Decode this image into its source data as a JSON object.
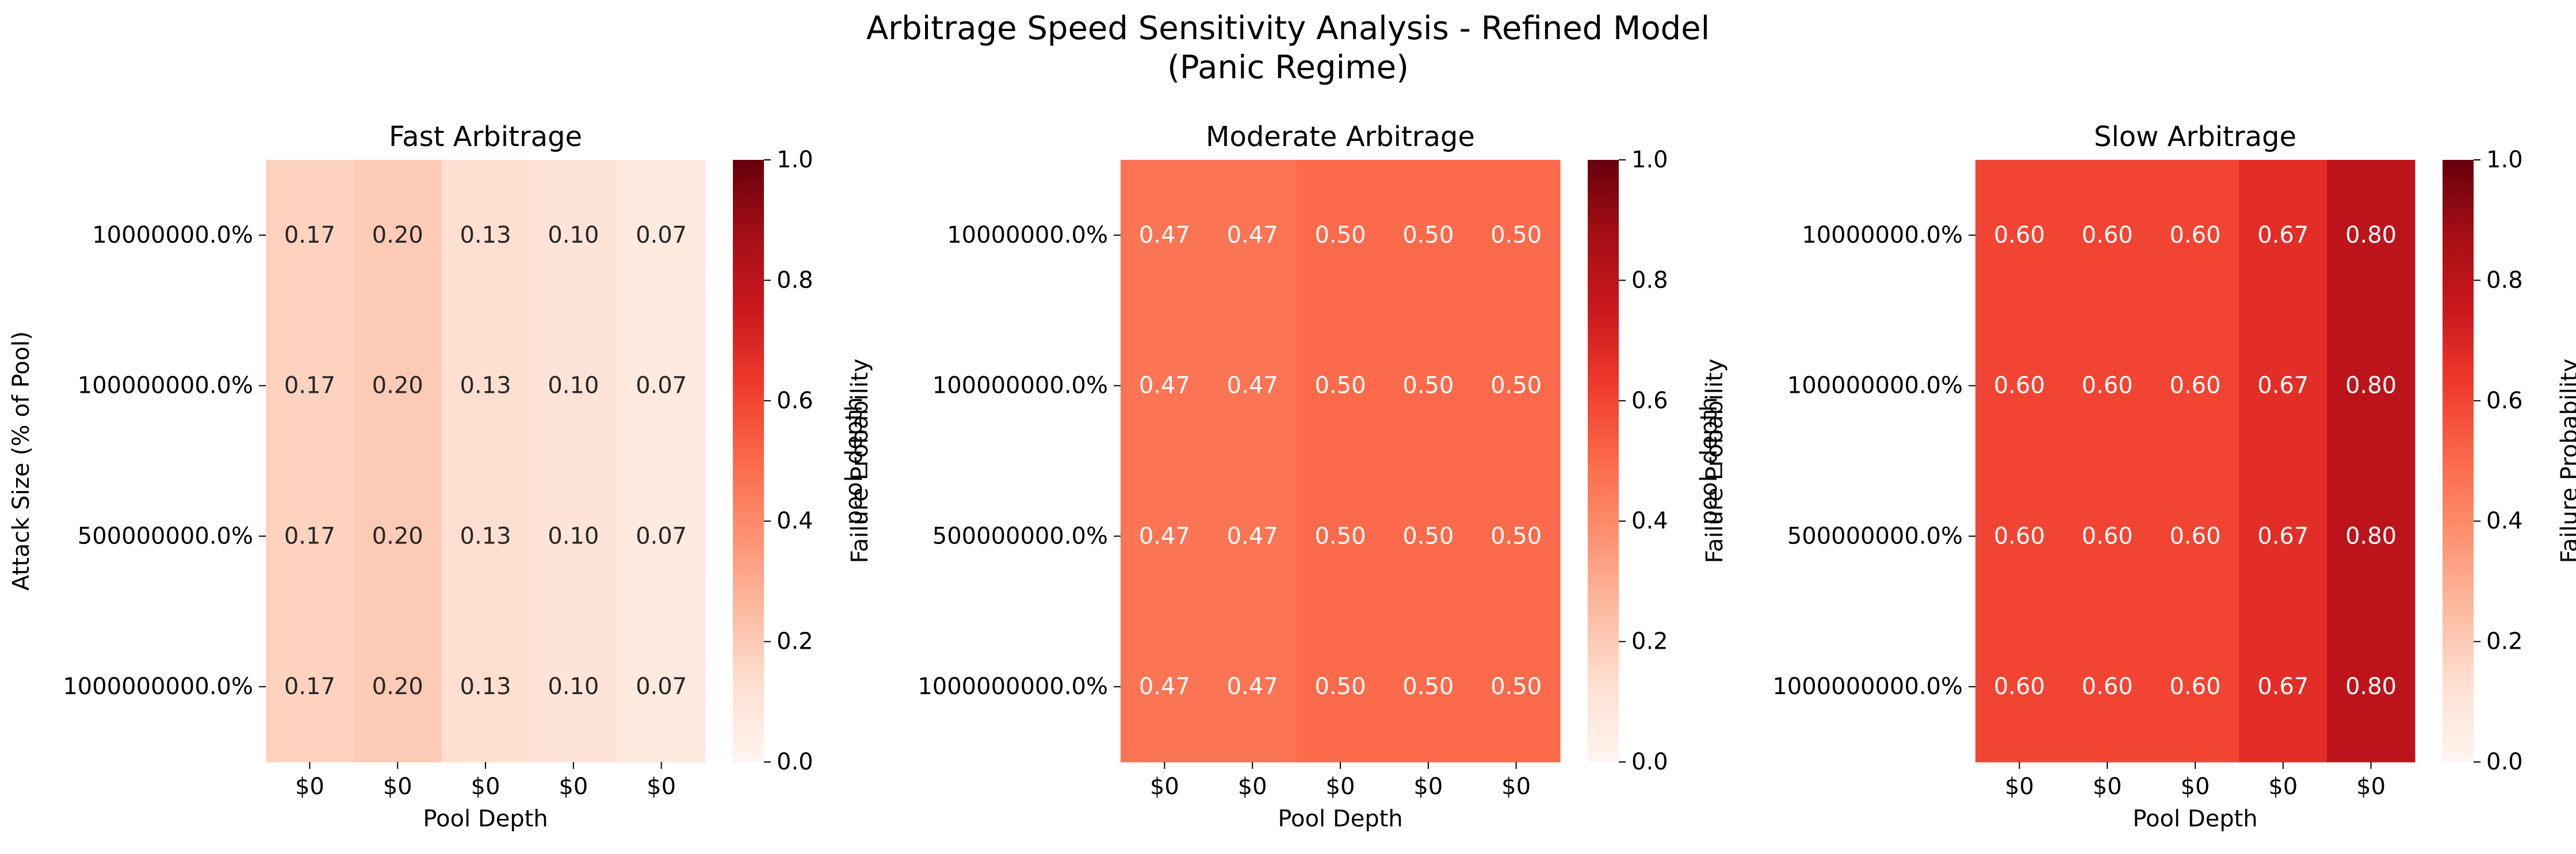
{
  "title": "Arbitrage Speed Sensitivity Analysis - Refined Model",
  "subtitle": "(Panic Regime)",
  "colors": {
    "cmap": "Reds",
    "light_text": "#ffffff",
    "dark_text": "#262626"
  },
  "chart_data": [
    {
      "type": "heatmap",
      "title": "Fast Arbitrage",
      "xlabel": "Pool Depth",
      "ylabel": "Attack Size (% of Pool)",
      "x_ticks": [
        "$0",
        "$0",
        "$0",
        "$0",
        "$0"
      ],
      "y_ticks": [
        "10000000.0%",
        "100000000.0%",
        "500000000.0%",
        "1000000000.0%"
      ],
      "values": [
        [
          0.17,
          0.2,
          0.13,
          0.1,
          0.07
        ],
        [
          0.17,
          0.2,
          0.13,
          0.1,
          0.07
        ],
        [
          0.17,
          0.2,
          0.13,
          0.1,
          0.07
        ],
        [
          0.17,
          0.2,
          0.13,
          0.1,
          0.07
        ]
      ],
      "annotations": [
        [
          "0.17",
          "0.20",
          "0.13",
          "0.10",
          "0.07"
        ],
        [
          "0.17",
          "0.20",
          "0.13",
          "0.10",
          "0.07"
        ],
        [
          "0.17",
          "0.20",
          "0.13",
          "0.10",
          "0.07"
        ],
        [
          "0.17",
          "0.20",
          "0.13",
          "0.10",
          "0.07"
        ]
      ],
      "vmin": 0.0,
      "vmax": 1.0,
      "colorbar": {
        "label": "Failure Probability",
        "ticks": [
          "0.0",
          "0.2",
          "0.4",
          "0.6",
          "0.8",
          "1.0"
        ]
      }
    },
    {
      "type": "heatmap",
      "title": "Moderate Arbitrage",
      "xlabel": "Pool Depth",
      "ylabel": "pool_depth",
      "x_ticks": [
        "$0",
        "$0",
        "$0",
        "$0",
        "$0"
      ],
      "y_ticks": [
        "10000000.0%",
        "100000000.0%",
        "500000000.0%",
        "1000000000.0%"
      ],
      "values": [
        [
          0.47,
          0.47,
          0.5,
          0.5,
          0.5
        ],
        [
          0.47,
          0.47,
          0.5,
          0.5,
          0.5
        ],
        [
          0.47,
          0.47,
          0.5,
          0.5,
          0.5
        ],
        [
          0.47,
          0.47,
          0.5,
          0.5,
          0.5
        ]
      ],
      "annotations": [
        [
          "0.47",
          "0.47",
          "0.50",
          "0.50",
          "0.50"
        ],
        [
          "0.47",
          "0.47",
          "0.50",
          "0.50",
          "0.50"
        ],
        [
          "0.47",
          "0.47",
          "0.50",
          "0.50",
          "0.50"
        ],
        [
          "0.47",
          "0.47",
          "0.50",
          "0.50",
          "0.50"
        ]
      ],
      "vmin": 0.0,
      "vmax": 1.0,
      "colorbar": {
        "label": "Failure Probability",
        "ticks": [
          "0.0",
          "0.2",
          "0.4",
          "0.6",
          "0.8",
          "1.0"
        ]
      }
    },
    {
      "type": "heatmap",
      "title": "Slow Arbitrage",
      "xlabel": "Pool Depth",
      "ylabel": "pool_depth",
      "x_ticks": [
        "$0",
        "$0",
        "$0",
        "$0",
        "$0"
      ],
      "y_ticks": [
        "10000000.0%",
        "100000000.0%",
        "500000000.0%",
        "1000000000.0%"
      ],
      "values": [
        [
          0.6,
          0.6,
          0.6,
          0.67,
          0.8
        ],
        [
          0.6,
          0.6,
          0.6,
          0.67,
          0.8
        ],
        [
          0.6,
          0.6,
          0.6,
          0.67,
          0.8
        ],
        [
          0.6,
          0.6,
          0.6,
          0.67,
          0.8
        ]
      ],
      "annotations": [
        [
          "0.60",
          "0.60",
          "0.60",
          "0.67",
          "0.80"
        ],
        [
          "0.60",
          "0.60",
          "0.60",
          "0.67",
          "0.80"
        ],
        [
          "0.60",
          "0.60",
          "0.60",
          "0.67",
          "0.80"
        ],
        [
          "0.60",
          "0.60",
          "0.60",
          "0.67",
          "0.80"
        ]
      ],
      "vmin": 0.0,
      "vmax": 1.0,
      "colorbar": {
        "label": "Failure Probability",
        "ticks": [
          "0.0",
          "0.2",
          "0.4",
          "0.6",
          "0.8",
          "1.0"
        ]
      }
    }
  ]
}
